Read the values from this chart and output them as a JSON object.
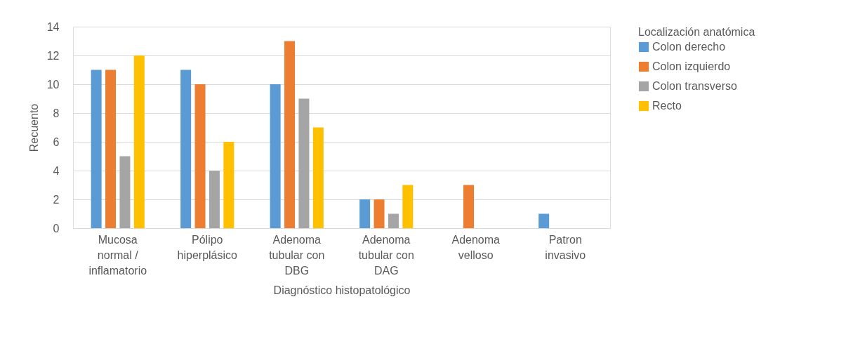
{
  "chart_data": {
    "type": "bar",
    "xlabel": "Diagnóstico histopatológico",
    "ylabel": "Recuento",
    "legend_title": "Localización anatómica",
    "categories": [
      "Mucosa normal / inflamatorio",
      "Pólipo hiperplásico",
      "Adenoma tubular con DBG",
      "Adenoma tubular con DAG",
      "Adenoma velloso",
      "Patron invasivo"
    ],
    "series": [
      {
        "name": "Colon derecho",
        "color": "#5b9bd5",
        "values": [
          11,
          11,
          10,
          2,
          0,
          1
        ]
      },
      {
        "name": "Colon izquierdo",
        "color": "#ed7d31",
        "values": [
          11,
          10,
          13,
          2,
          3,
          0
        ]
      },
      {
        "name": "Colon transverso",
        "color": "#a5a5a5",
        "values": [
          5,
          4,
          9,
          1,
          0,
          0
        ]
      },
      {
        "name": "Recto",
        "color": "#ffc000",
        "values": [
          12,
          6,
          7,
          3,
          0,
          0
        ]
      }
    ],
    "ylim": [
      0,
      14
    ],
    "yticks": [
      0,
      2,
      4,
      6,
      8,
      10,
      12,
      14
    ],
    "grid": "y",
    "legend": "right"
  }
}
